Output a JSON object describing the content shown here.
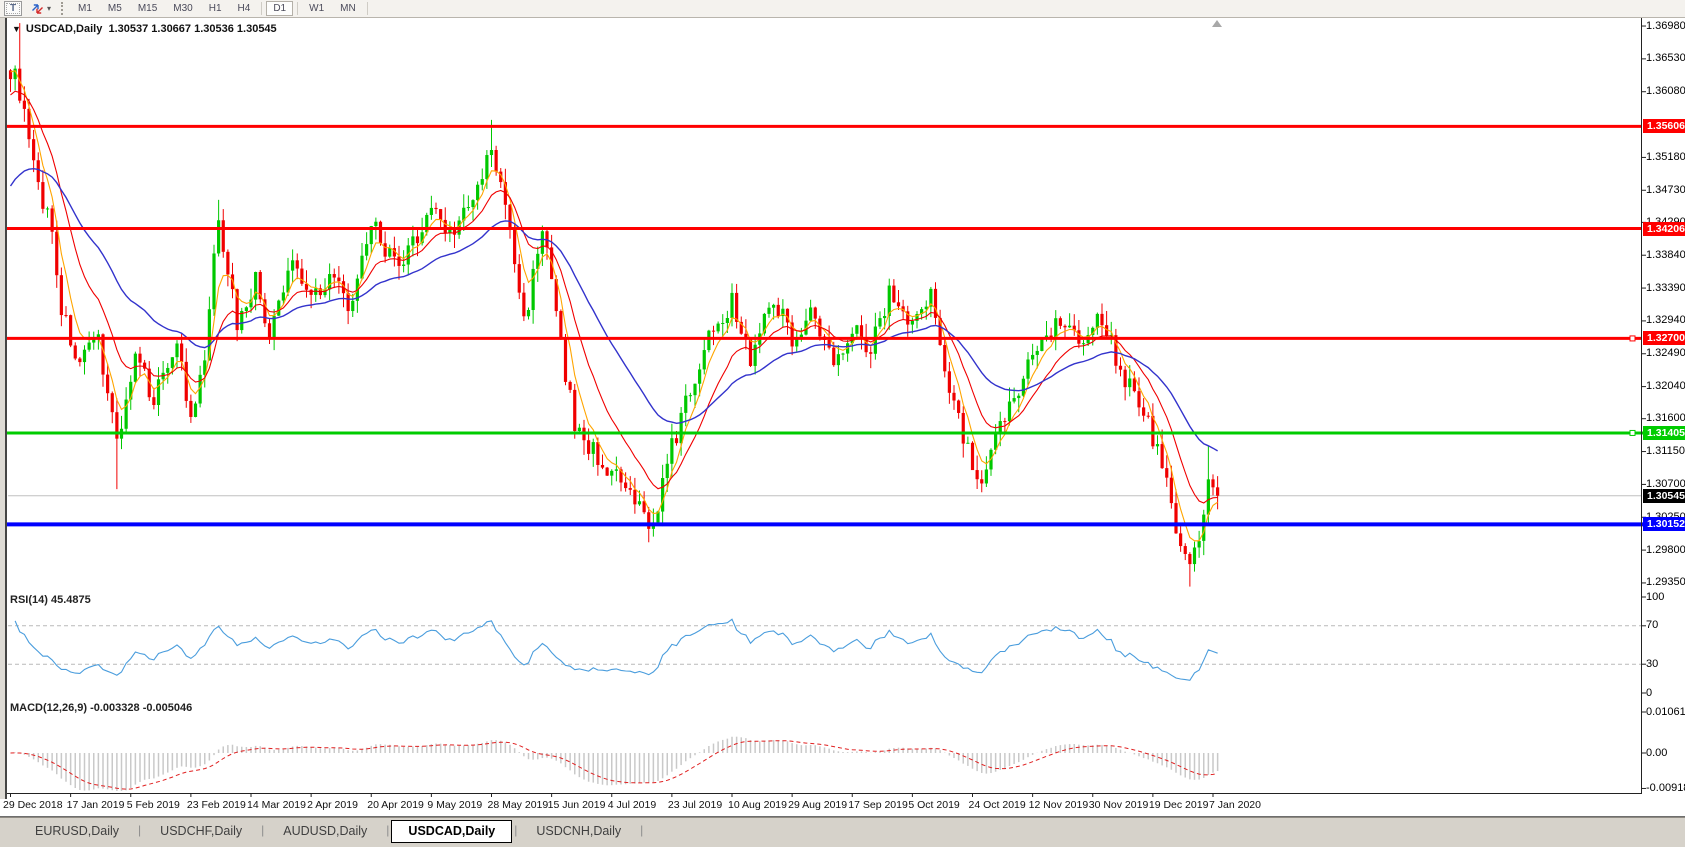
{
  "toolbar": {
    "text_tool_label": "T",
    "caret": "▾",
    "timeframes": [
      "M1",
      "M5",
      "M15",
      "M30",
      "H1",
      "H4",
      "D1",
      "W1",
      "MN"
    ],
    "active_timeframe": "D1"
  },
  "chart": {
    "marker": "▼",
    "title": "USDCAD,Daily",
    "ohlc_text": "1.30537 1.30667 1.30536 1.30545"
  },
  "chart_data": {
    "type": "candlestick",
    "symbol": "USDCAD",
    "period": "Daily",
    "ohlc_display": {
      "open": "1.30537",
      "high": "1.30667",
      "low": "1.30536",
      "close": "1.30545"
    },
    "price_axis_ticks": [
      "1.36980",
      "1.36530",
      "1.36080",
      "1.35180",
      "1.34730",
      "1.34290",
      "1.33840",
      "1.33390",
      "1.32940",
      "1.32490",
      "1.32040",
      "1.31600",
      "1.31150",
      "1.30700",
      "1.30250",
      "1.29800",
      "1.29350"
    ],
    "horizontal_lines": [
      {
        "price": 1.35606,
        "label": "1.35606",
        "color": "#ff0000",
        "thickness": 3,
        "full_width": false,
        "handle": false
      },
      {
        "price": 1.34206,
        "label": "1.34206",
        "color": "#ff0000",
        "thickness": 3,
        "full_width": false,
        "handle": false
      },
      {
        "price": 1.327,
        "label": "1.32700",
        "color": "#ff0000",
        "thickness": 3,
        "full_width": false,
        "handle": true
      },
      {
        "price": 1.31405,
        "label": "1.31405",
        "color": "#00cc00",
        "thickness": 3,
        "full_width": true,
        "handle": true
      },
      {
        "price": 1.30152,
        "label": "1.30152",
        "color": "#0000ff",
        "thickness": 4,
        "full_width": true,
        "handle": false
      }
    ],
    "current_price_tag": {
      "price": 1.30545,
      "label": "1.30545",
      "color": "#000000",
      "line_color": "#c0c0c0"
    },
    "date_axis_ticks": [
      "29 Dec 2018",
      "17 Jan 2019",
      "5 Feb 2019",
      "23 Feb 2019",
      "14 Mar 2019",
      "2 Apr 2019",
      "20 Apr 2019",
      "9 May 2019",
      "28 May 2019",
      "15 Jun 2019",
      "4 Jul 2019",
      "23 Jul 2019",
      "10 Aug 2019",
      "29 Aug 2019",
      "17 Sep 2019",
      "5 Oct 2019",
      "24 Oct 2019",
      "12 Nov 2019",
      "30 Nov 2019",
      "19 Dec 2019",
      "7 Jan 2020"
    ],
    "candles": {
      "count": 262,
      "colors": {
        "bull": "#00c800",
        "bear": "#f00000"
      },
      "anchors": [
        [
          0,
          1.364
        ],
        [
          2,
          1.361
        ],
        [
          5,
          1.35
        ],
        [
          9,
          1.342
        ],
        [
          11,
          1.331
        ],
        [
          15,
          1.323
        ],
        [
          19,
          1.327
        ],
        [
          23,
          1.313
        ],
        [
          27,
          1.324
        ],
        [
          31,
          1.319
        ],
        [
          36,
          1.327
        ],
        [
          39,
          1.315
        ],
        [
          42,
          1.324
        ],
        [
          45,
          1.344
        ],
        [
          49,
          1.329
        ],
        [
          53,
          1.335
        ],
        [
          56,
          1.327
        ],
        [
          61,
          1.338
        ],
        [
          65,
          1.333
        ],
        [
          69,
          1.3355
        ],
        [
          74,
          1.331
        ],
        [
          78,
          1.343
        ],
        [
          84,
          1.336
        ],
        [
          91,
          1.345
        ],
        [
          95,
          1.3415
        ],
        [
          100,
          1.3455
        ],
        [
          104,
          1.353
        ],
        [
          108,
          1.342
        ],
        [
          111,
          1.329
        ],
        [
          115,
          1.3425
        ],
        [
          119,
          1.326
        ],
        [
          122,
          1.315
        ],
        [
          126,
          1.3115
        ],
        [
          130,
          1.3085
        ],
        [
          134,
          1.305
        ],
        [
          139,
          1.3015
        ],
        [
          143,
          1.312
        ],
        [
          147,
          1.32
        ],
        [
          152,
          1.329
        ],
        [
          156,
          1.332
        ],
        [
          160,
          1.3245
        ],
        [
          165,
          1.333
        ],
        [
          169,
          1.327
        ],
        [
          173,
          1.3305
        ],
        [
          178,
          1.3235
        ],
        [
          182,
          1.329
        ],
        [
          186,
          1.3255
        ],
        [
          190,
          1.3335
        ],
        [
          195,
          1.329
        ],
        [
          199,
          1.3325
        ],
        [
          203,
          1.321
        ],
        [
          207,
          1.3115
        ],
        [
          210,
          1.306
        ],
        [
          214,
          1.315
        ],
        [
          219,
          1.322
        ],
        [
          223,
          1.327
        ],
        [
          227,
          1.33
        ],
        [
          232,
          1.327
        ],
        [
          236,
          1.33
        ],
        [
          240,
          1.323
        ],
        [
          245,
          1.317
        ],
        [
          249,
          1.31
        ],
        [
          252,
          1.301
        ],
        [
          255,
          1.296
        ],
        [
          257,
          1.299
        ],
        [
          259,
          1.307
        ],
        [
          261,
          1.30545
        ]
      ],
      "wick_boost": {
        "2": 0.006,
        "45": 0.0015,
        "104": 0.0022,
        "259": 0.004
      },
      "low_boost": {
        "23": 0.0055,
        "139": 0.001,
        "210": 0.001,
        "255": 0.0022
      }
    },
    "moving_averages": [
      {
        "name": "ma-fast",
        "period": 5,
        "color": "#ffa500",
        "seed": 1.364
      },
      {
        "name": "ma-mid",
        "period": 13,
        "color": "#f00000",
        "seed": 1.36
      },
      {
        "name": "ma-slow",
        "period": 34,
        "color": "#3333cc",
        "seed": 1.347
      }
    ],
    "rsi": {
      "label": "RSI(14)",
      "value": "45.4875",
      "line_color": "#4a9ddd",
      "levels": [
        70,
        30
      ],
      "scale": [
        0,
        100
      ],
      "axis_ticks": [
        {
          "label": "100",
          "v": 100
        },
        {
          "label": "70",
          "v": 70
        },
        {
          "label": "30",
          "v": 30
        },
        {
          "label": "0",
          "v": 0
        }
      ]
    },
    "macd": {
      "label": "MACD(12,26,9)",
      "value_main": "-0.003328",
      "value_signal": "-0.005046",
      "hist_color": "#c9c9c9",
      "signal_color": "#e02020",
      "axis_ticks": [
        {
          "label": "0.010615",
          "v": 0.010615
        },
        {
          "label": "0.00",
          "v": 0
        },
        {
          "label": "-0.009181",
          "v": -0.009181
        }
      ]
    }
  },
  "tabs": {
    "separator": "|",
    "items": [
      {
        "label": "EURUSD,Daily",
        "active": false
      },
      {
        "label": "USDCHF,Daily",
        "active": false
      },
      {
        "label": "AUDUSD,Daily",
        "active": false
      },
      {
        "label": "USDCAD,Daily",
        "active": true
      },
      {
        "label": "USDCNH,Daily",
        "active": false
      }
    ]
  }
}
